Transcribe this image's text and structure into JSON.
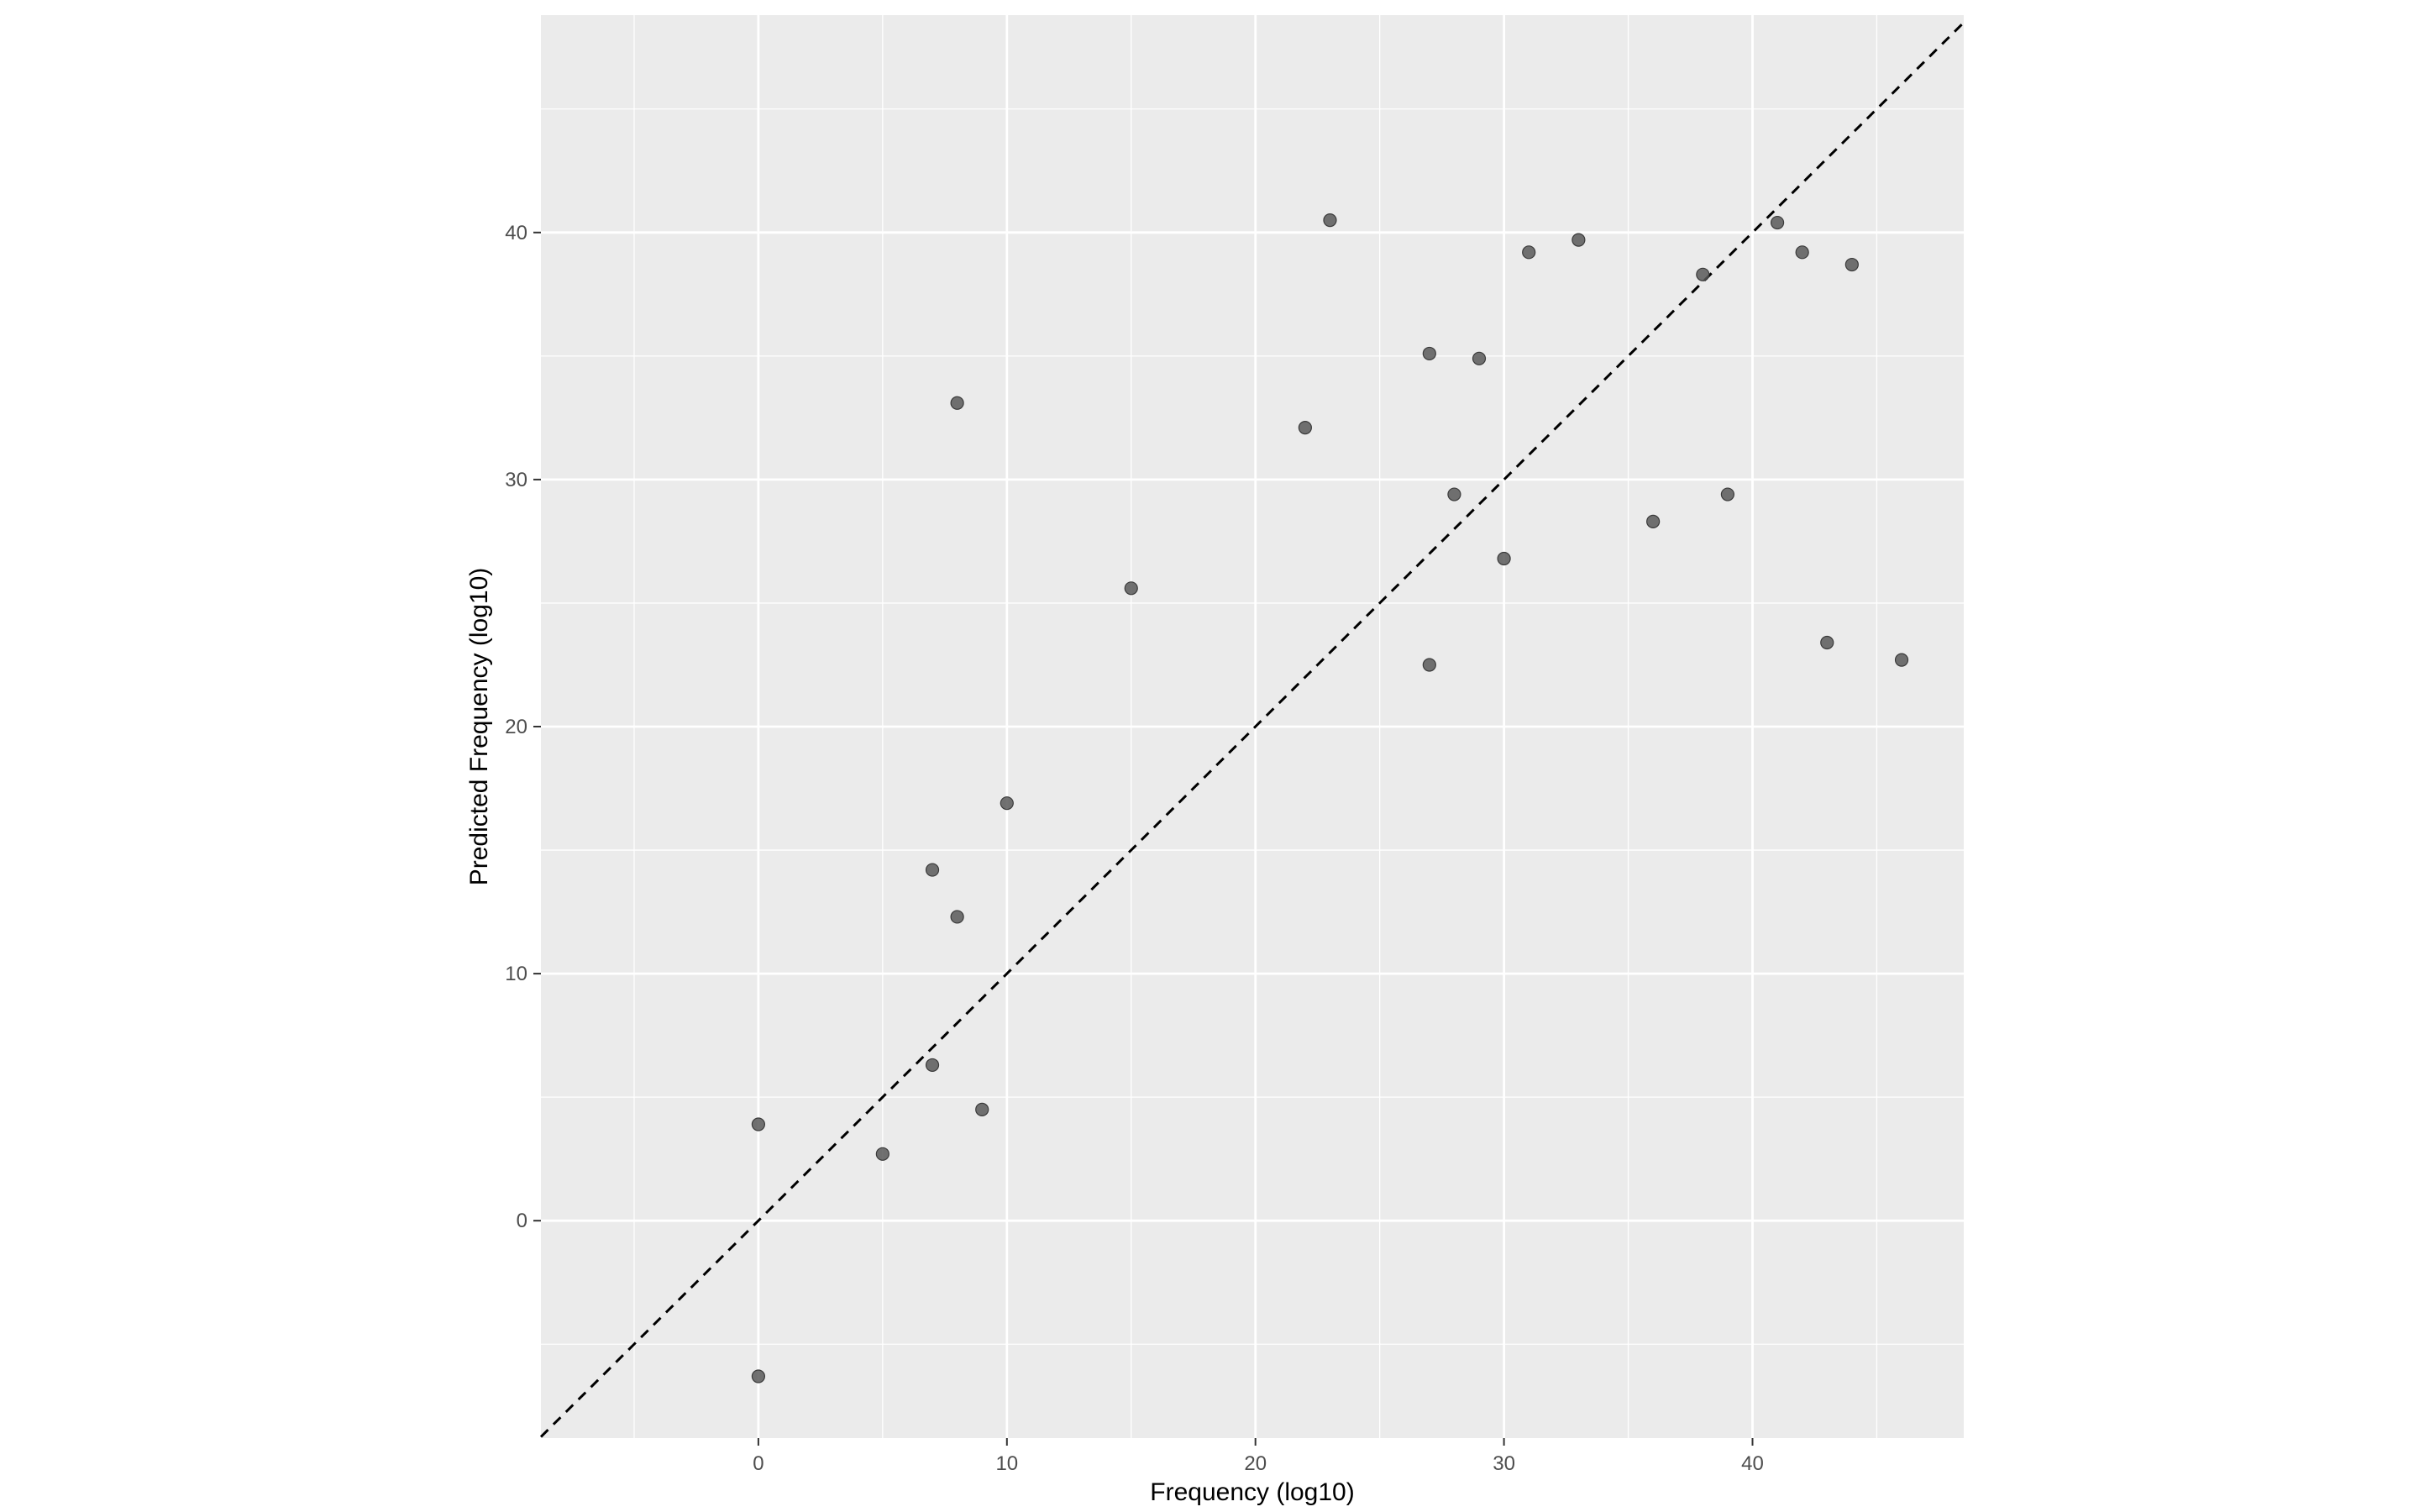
{
  "chart_data": {
    "type": "scatter",
    "title": "",
    "xlabel": "Frequency (log10)",
    "ylabel": "Predicted Frequency (log10)",
    "xlim": [
      -8.75,
      48.5
    ],
    "ylim": [
      -8.8,
      48.8
    ],
    "x_ticks": [
      0,
      10,
      20,
      30,
      40
    ],
    "y_ticks": [
      0,
      10,
      20,
      30,
      40
    ],
    "x_minor_ticks": [
      -5,
      5,
      15,
      25,
      35,
      45
    ],
    "y_minor_ticks": [
      -5,
      5,
      15,
      25,
      35,
      45
    ],
    "reference_line": {
      "slope": 1,
      "intercept": 0,
      "style": "dashed",
      "color": "#000000"
    },
    "grid": true,
    "panel_background": "#ebebeb",
    "grid_color": "#ffffff",
    "point_color": "#595959",
    "points": [
      {
        "x": 0,
        "y": -6.3
      },
      {
        "x": 0,
        "y": 3.9
      },
      {
        "x": 5,
        "y": 2.7
      },
      {
        "x": 7,
        "y": 6.3
      },
      {
        "x": 7,
        "y": 14.2
      },
      {
        "x": 8,
        "y": 12.3
      },
      {
        "x": 8,
        "y": 33.1
      },
      {
        "x": 9,
        "y": 4.5
      },
      {
        "x": 10,
        "y": 16.9
      },
      {
        "x": 15,
        "y": 25.6
      },
      {
        "x": 22,
        "y": 32.1
      },
      {
        "x": 23,
        "y": 40.5
      },
      {
        "x": 27,
        "y": 35.1
      },
      {
        "x": 27,
        "y": 22.5
      },
      {
        "x": 28,
        "y": 29.4
      },
      {
        "x": 29,
        "y": 34.9
      },
      {
        "x": 30,
        "y": 26.8
      },
      {
        "x": 31,
        "y": 39.2
      },
      {
        "x": 33,
        "y": 39.7
      },
      {
        "x": 36,
        "y": 28.3
      },
      {
        "x": 38,
        "y": 38.3
      },
      {
        "x": 39,
        "y": 29.4
      },
      {
        "x": 41,
        "y": 40.4
      },
      {
        "x": 42,
        "y": 39.2
      },
      {
        "x": 43,
        "y": 23.4
      },
      {
        "x": 44,
        "y": 38.7
      },
      {
        "x": 46,
        "y": 22.7
      }
    ]
  }
}
